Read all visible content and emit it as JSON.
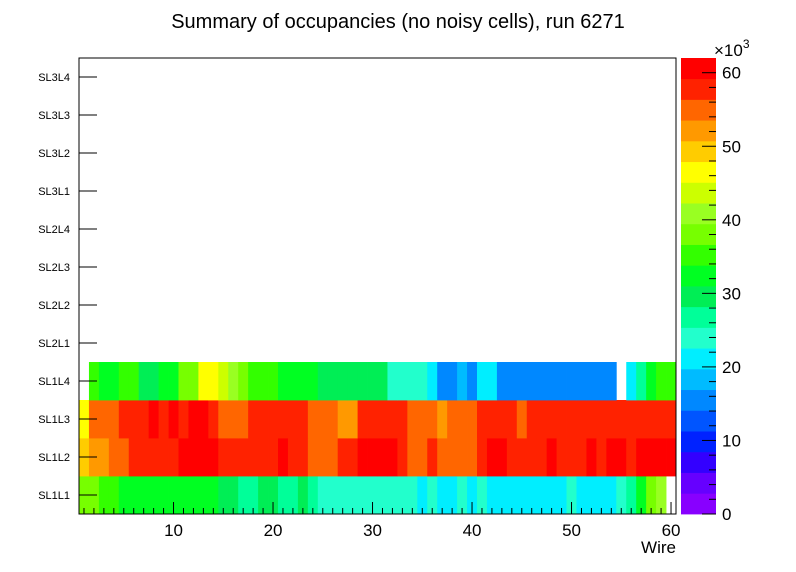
{
  "chart_data": {
    "type": "heatmap",
    "title": "Summary of occupancies (no noisy cells), run 6271",
    "xlabel": "Wire",
    "ylabel": "",
    "x_range": [
      0.5,
      60.5
    ],
    "x_ticks": [
      "10",
      "20",
      "30",
      "40",
      "50",
      "60"
    ],
    "y_categories": [
      "SL1L1",
      "SL1L2",
      "SL1L3",
      "SL1L4",
      "SL2L1",
      "SL2L2",
      "SL2L3",
      "SL2L4",
      "SL3L1",
      "SL3L2",
      "SL3L3",
      "SL3L4"
    ],
    "z_range": [
      0,
      62000
    ],
    "z_multiplier_label": "×10",
    "z_multiplier_exponent": "3",
    "colorbar_ticks": [
      "0",
      "10",
      "20",
      "30",
      "40",
      "50",
      "60"
    ],
    "palette": [
      "#8800ff",
      "#6600ff",
      "#3300ff",
      "#0022ff",
      "#0055ff",
      "#0088ff",
      "#00bbff",
      "#00eeff",
      "#22ffcc",
      "#00ff99",
      "#00ee55",
      "#00ff22",
      "#33ff00",
      "#77ff00",
      "#99ff22",
      "#ccff00",
      "#ffff00",
      "#ffcc00",
      "#ff9900",
      "#ff6600",
      "#ff2200",
      "#ff0000"
    ],
    "series": [
      {
        "name": "SL1L1",
        "values": [
          39,
          38,
          36,
          36,
          33,
          33,
          31,
          33,
          33,
          31,
          33,
          33,
          31,
          33,
          29,
          29,
          27,
          27,
          29,
          29,
          27,
          27,
          29,
          26,
          24,
          24,
          24,
          24,
          24,
          24,
          24,
          24,
          24,
          24,
          21,
          24,
          21,
          21,
          23,
          21,
          24,
          21,
          21,
          21,
          21,
          21,
          21,
          21,
          21,
          23,
          21,
          21,
          21,
          21,
          24,
          26,
          33,
          39,
          40,
          0
        ]
      },
      {
        "name": "SL1L2",
        "values": [
          48,
          51,
          51,
          54,
          54,
          58,
          58,
          58,
          58,
          58,
          61,
          61,
          61,
          61,
          58,
          58,
          58,
          58,
          58,
          58,
          61,
          58,
          58,
          54,
          54,
          54,
          58,
          58,
          61,
          61,
          61,
          61,
          58,
          54,
          54,
          58,
          54,
          54,
          54,
          54,
          58,
          61,
          61,
          58,
          58,
          58,
          58,
          61,
          58,
          58,
          58,
          61,
          58,
          61,
          61,
          58,
          61,
          61,
          61,
          61
        ]
      },
      {
        "name": "SL1L3",
        "values": [
          46,
          54,
          54,
          54,
          58,
          58,
          58,
          61,
          58,
          61,
          58,
          61,
          61,
          58,
          54,
          54,
          54,
          58,
          58,
          58,
          58,
          58,
          58,
          54,
          54,
          54,
          51,
          51,
          58,
          58,
          58,
          58,
          58,
          54,
          54,
          54,
          51,
          54,
          54,
          54,
          58,
          58,
          58,
          58,
          54,
          58,
          58,
          58,
          58,
          58,
          58,
          58,
          58,
          58,
          58,
          58,
          58,
          58,
          58,
          58
        ]
      },
      {
        "name": "SL1L4",
        "values": [
          0,
          34,
          31,
          31,
          34,
          34,
          29,
          29,
          31,
          31,
          38,
          38,
          46,
          46,
          44,
          40,
          38,
          34,
          34,
          34,
          31,
          31,
          31,
          31,
          29,
          29,
          29,
          29,
          29,
          29,
          29,
          24,
          24,
          23,
          23,
          21,
          16,
          16,
          19,
          16,
          21,
          21,
          16,
          16,
          16,
          16,
          16,
          16,
          16,
          16,
          16,
          16,
          16,
          16,
          0,
          21,
          27,
          31,
          36,
          36
        ]
      },
      {
        "name": "SL2L1",
        "values": []
      },
      {
        "name": "SL2L2",
        "values": []
      },
      {
        "name": "SL2L3",
        "values": []
      },
      {
        "name": "SL2L4",
        "values": []
      },
      {
        "name": "SL3L1",
        "values": []
      },
      {
        "name": "SL3L2",
        "values": []
      },
      {
        "name": "SL3L3",
        "values": []
      },
      {
        "name": "SL3L4",
        "values": []
      }
    ]
  }
}
